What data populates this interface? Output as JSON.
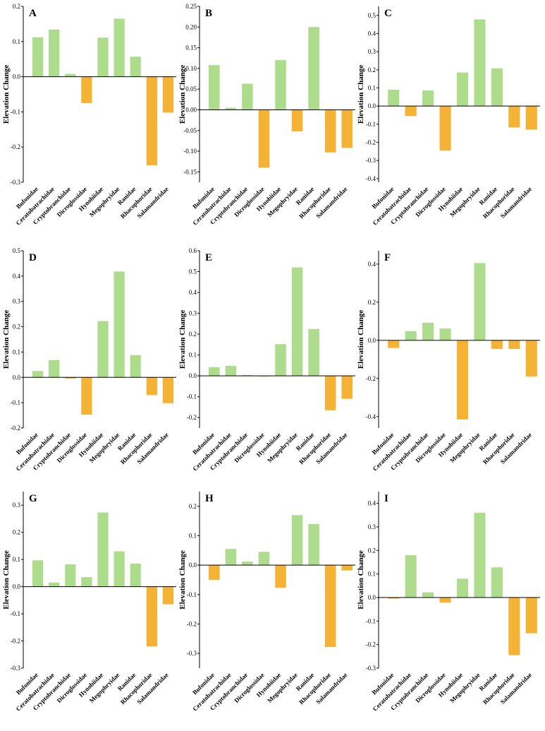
{
  "colors": {
    "positive": "#acdc8c",
    "negative": "#f5b335"
  },
  "chart_data": [
    {
      "id": "A",
      "type": "bar",
      "title": "A",
      "ylabel": "Elevation Change",
      "xlabel": "",
      "categories": [
        "Bufonidae",
        "Ceratobatrachidae",
        "Cryptobranchidae",
        "Dicroglossidae",
        "Hynobiidae",
        "Megophryidae",
        "Ranidae",
        "Rhacophoridae",
        "Salamandridae"
      ],
      "values": [
        0.112,
        0.134,
        0.008,
        -0.075,
        0.111,
        0.165,
        0.057,
        -0.252,
        -0.102
      ],
      "ylim": [
        -0.3,
        0.2
      ],
      "yticks": [
        -0.3,
        -0.2,
        -0.1,
        0.0,
        0.1,
        0.2
      ],
      "ytick_labels": [
        "-0.3",
        "-0.2",
        "-0.1",
        "0.0",
        "0.1",
        "0.2"
      ]
    },
    {
      "id": "B",
      "type": "bar",
      "title": "B",
      "ylabel": "Elevation Change",
      "xlabel": "",
      "categories": [
        "Bufonidae",
        "Ceratobatrachidae",
        "Cryptobranchidae",
        "Dicroglossidae",
        "Hynobiidae",
        "Megophryidae",
        "Ranidae",
        "Rhacophoridae",
        "Salamandridae"
      ],
      "values": [
        0.108,
        0.005,
        0.063,
        -0.14,
        0.12,
        -0.052,
        0.2,
        -0.103,
        -0.092
      ],
      "ylim": [
        -0.175,
        0.25
      ],
      "yticks": [
        -0.15,
        -0.1,
        -0.05,
        0.0,
        0.05,
        0.1,
        0.15,
        0.2,
        0.25
      ],
      "ytick_labels": [
        "-0.15",
        "-0.10",
        "-0.05",
        "0.00",
        "0.05",
        "0.10",
        "0.15",
        "0.20",
        "0.25"
      ]
    },
    {
      "id": "C",
      "type": "bar",
      "title": "C",
      "ylabel": "Elevation Change",
      "xlabel": "",
      "categories": [
        "Bufonidae",
        "Ceratobatrachidae",
        "Cryptobranchidae",
        "Dicroglossidae",
        "Hynobiidae",
        "Megophryidae",
        "Ranidae",
        "Rhacophoridae",
        "Salamandridae"
      ],
      "values": [
        0.09,
        -0.055,
        0.086,
        -0.245,
        0.185,
        0.478,
        0.208,
        -0.118,
        -0.13
      ],
      "ylim": [
        -0.42,
        0.55
      ],
      "yticks": [
        -0.4,
        -0.3,
        -0.2,
        -0.1,
        0.0,
        0.1,
        0.2,
        0.3,
        0.4,
        0.5
      ],
      "ytick_labels": [
        "-0.4",
        "-0.3",
        "-0.2",
        "-0.1",
        "0.0",
        "0.1",
        "0.2",
        "0.3",
        "0.4",
        "0.5"
      ]
    },
    {
      "id": "D",
      "type": "bar",
      "title": "D",
      "ylabel": "Elevation Change",
      "xlabel": "",
      "categories": [
        "Bufonidae",
        "Ceratobatrachidae",
        "Cryptobranchidae",
        "Dicroglossidae",
        "Hynobiidae",
        "Megophryidae",
        "Ranidae",
        "Rhacophoridae",
        "Salamandridae"
      ],
      "values": [
        0.025,
        0.068,
        -0.005,
        -0.147,
        0.222,
        0.418,
        0.088,
        -0.07,
        -0.102
      ],
      "ylim": [
        -0.2,
        0.5
      ],
      "yticks": [
        -0.2,
        -0.1,
        0.0,
        0.1,
        0.2,
        0.3,
        0.4,
        0.5
      ],
      "ytick_labels": [
        "-0.2",
        "-0.1",
        "0.0",
        "0.1",
        "0.2",
        "0.3",
        "0.4",
        "0.5"
      ]
    },
    {
      "id": "E",
      "type": "bar",
      "title": "E",
      "ylabel": "Elevation Change",
      "xlabel": "",
      "categories": [
        "Bufonidae",
        "Ceratobatrachidae",
        "Cryptobranchidae",
        "Dicroglossidae",
        "Hynobiidae",
        "Megophryidae",
        "Ranidae",
        "Rhacophoridae",
        "Salamandridae"
      ],
      "values": [
        0.042,
        0.048,
        0.004,
        -0.003,
        0.152,
        0.52,
        0.225,
        -0.165,
        -0.11
      ],
      "ylim": [
        -0.25,
        0.6
      ],
      "yticks": [
        -0.2,
        -0.1,
        0.0,
        0.1,
        0.2,
        0.3,
        0.4,
        0.5,
        0.6
      ],
      "ytick_labels": [
        "-0.2",
        "-0.1",
        "0.0",
        "0.1",
        "0.2",
        "0.3",
        "0.4",
        "0.5",
        "0.6"
      ]
    },
    {
      "id": "F",
      "type": "bar",
      "title": "F",
      "ylabel": "Elevation Change",
      "xlabel": "",
      "categories": [
        "Bufonidae",
        "Ceratobatrachidae",
        "Cryptobranchidae",
        "Dicroglossidae",
        "Hynobiidae",
        "Megophryidae",
        "Ranidae",
        "Rhacophoridae",
        "Salamandridae"
      ],
      "values": [
        -0.04,
        0.048,
        0.092,
        0.062,
        -0.415,
        0.405,
        -0.045,
        -0.045,
        -0.19
      ],
      "ylim": [
        -0.46,
        0.47
      ],
      "yticks": [
        -0.4,
        -0.2,
        0.0,
        0.2,
        0.4
      ],
      "ytick_labels": [
        "-0.4",
        "-0.2",
        "0.0",
        "0.2",
        "0.4"
      ]
    },
    {
      "id": "G",
      "type": "bar",
      "title": "G",
      "ylabel": "Elevation Change",
      "xlabel": "",
      "categories": [
        "Bufonidae",
        "Ceratobatrachidae",
        "Cryptobranchidae",
        "Dicroglossidae",
        "Hynobiidae",
        "Megophryidae",
        "Ranidae",
        "Rhacophoridae",
        "Salamandridae"
      ],
      "values": [
        0.097,
        0.015,
        0.082,
        0.035,
        0.273,
        0.13,
        0.085,
        -0.22,
        -0.065
      ],
      "ylim": [
        -0.3,
        0.35
      ],
      "yticks": [
        -0.3,
        -0.2,
        -0.1,
        0.0,
        0.1,
        0.2,
        0.3
      ],
      "ytick_labels": [
        "-0.3",
        "-0.2",
        "-0.1",
        "0.0",
        "0.1",
        "0.2",
        "0.3"
      ]
    },
    {
      "id": "H",
      "type": "bar",
      "title": "H",
      "ylabel": "Elevation Change",
      "xlabel": "",
      "categories": [
        "Bufonidae",
        "Ceratobatrachidae",
        "Cryptobranchidae",
        "Dicroglossidae",
        "Hynobiidae",
        "Megophryidae",
        "Ranidae",
        "Rhacophoridae",
        "Salamandridae"
      ],
      "values": [
        -0.05,
        0.055,
        0.012,
        0.045,
        -0.077,
        0.17,
        0.14,
        -0.278,
        -0.018
      ],
      "ylim": [
        -0.35,
        0.25
      ],
      "yticks": [
        -0.3,
        -0.2,
        -0.1,
        0.0,
        0.1,
        0.2
      ],
      "ytick_labels": [
        "-0.3",
        "-0.2",
        "-0.1",
        "0.0",
        "0.1",
        "0.2"
      ]
    },
    {
      "id": "I",
      "type": "bar",
      "title": "I",
      "ylabel": "Elevation Change",
      "xlabel": "",
      "categories": [
        "Bufonidae",
        "Ceratobatrachidae",
        "Cryptobranchidae",
        "Dicroglossidae",
        "Hynobiidae",
        "Megophryidae",
        "Ranidae",
        "Rhacophoridae",
        "Salamandridae"
      ],
      "values": [
        -0.005,
        0.18,
        0.022,
        -0.022,
        0.08,
        0.36,
        0.128,
        -0.245,
        -0.152
      ],
      "ylim": [
        -0.3,
        0.45
      ],
      "yticks": [
        -0.3,
        -0.2,
        -0.1,
        0.0,
        0.1,
        0.2,
        0.3,
        0.4
      ],
      "ytick_labels": [
        "-0.3",
        "-0.2",
        "-0.1",
        "0.0",
        "0.1",
        "0.2",
        "0.3",
        "0.4"
      ]
    }
  ]
}
